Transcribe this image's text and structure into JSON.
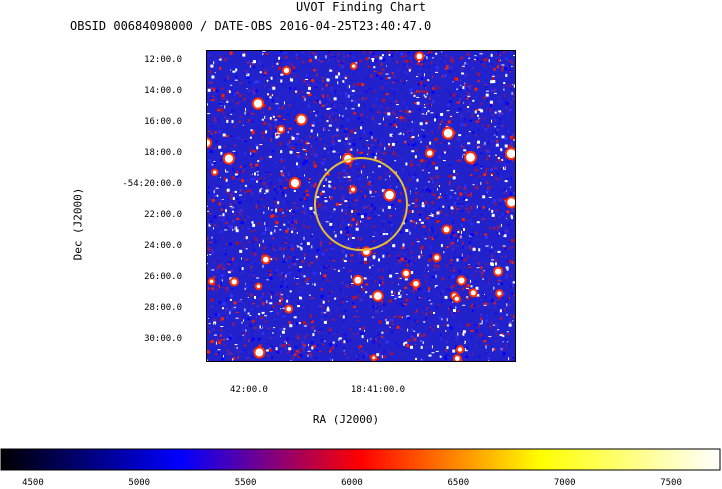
{
  "chart_data": {
    "type": "heatmap",
    "title": "UVOT Finding Chart",
    "subtitle": "OBSID 00684098000 / DATE-OBS 2016-04-25T23:40:47.0",
    "xlabel": "RA (J2000)",
    "ylabel": "Dec (J2000)",
    "x_ticks": [
      "42:00.0",
      "18:41:00.0"
    ],
    "y_ticks": [
      "12:00.0",
      "14:00.0",
      "16:00.0",
      "18:00.0",
      "-54:20:00.0",
      "22:00.0",
      "24:00.0",
      "26:00.0",
      "28:00.0",
      "30:00.0"
    ],
    "colorbar": {
      "ticks": [
        4500,
        5000,
        5500,
        6000,
        6500,
        7000,
        7500
      ],
      "range": [
        4350,
        7730
      ],
      "colors": [
        "#000000",
        "#0000ff",
        "#ff0000",
        "#ffff00",
        "#ffffff"
      ]
    },
    "marker": {
      "shape": "circle",
      "color": "#e8c030"
    }
  }
}
